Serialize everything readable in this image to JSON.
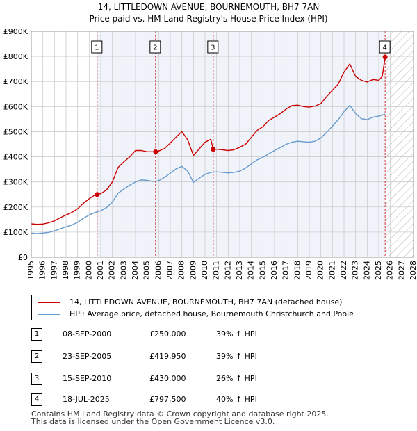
{
  "title_line1": "14, LITTLEDOWN AVENUE, BOURNEMOUTH, BH7 7AN",
  "title_line2": "Price paid vs. HM Land Registry's House Price Index (HPI)",
  "colors": {
    "property": "#cc0000",
    "hpi": "#6699cc",
    "marker_line": "#cc0000",
    "shade": "#dde6f5",
    "grid": "#cccccc"
  },
  "legend": {
    "property": "14, LITTLEDOWN AVENUE, BOURNEMOUTH, BH7 7AN (detached house)",
    "hpi": "HPI: Average price, detached house, Bournemouth Christchurch and Poole"
  },
  "sales": [
    {
      "num": "1",
      "date": "08-SEP-2000",
      "price": "£250,000",
      "hpi": "39% ↑ HPI"
    },
    {
      "num": "2",
      "date": "23-SEP-2005",
      "price": "£419,950",
      "hpi": "39% ↑ HPI"
    },
    {
      "num": "3",
      "date": "15-SEP-2010",
      "price": "£430,000",
      "hpi": "26% ↑ HPI"
    },
    {
      "num": "4",
      "date": "18-JUL-2025",
      "price": "£797,500",
      "hpi": "40% ↑ HPI"
    }
  ],
  "footer": [
    "Contains HM Land Registry data © Crown copyright and database right 2025.",
    "This data is licensed under the Open Government Licence v3.0."
  ],
  "chart_data": {
    "type": "line",
    "title": "14, LITTLEDOWN AVENUE, BOURNEMOUTH, BH7 7AN — Price paid vs. HM Land Registry's House Price Index (HPI)",
    "xlabel": "",
    "ylabel": "",
    "xlim": [
      1995,
      2028
    ],
    "ylim": [
      0,
      900000
    ],
    "grid": true,
    "x_ticks": [
      1995,
      1996,
      1997,
      1998,
      1999,
      2000,
      2001,
      2002,
      2003,
      2004,
      2005,
      2006,
      2007,
      2008,
      2009,
      2010,
      2011,
      2012,
      2013,
      2014,
      2015,
      2016,
      2017,
      2018,
      2019,
      2020,
      2021,
      2022,
      2023,
      2024,
      2025,
      2026,
      2027,
      2028
    ],
    "y_ticks": [
      0,
      100000,
      200000,
      300000,
      400000,
      500000,
      600000,
      700000,
      800000,
      900000
    ],
    "y_tick_labels": [
      "£0",
      "£100K",
      "£200K",
      "£300K",
      "£400K",
      "£500K",
      "£600K",
      "£700K",
      "£800K",
      "£900K"
    ],
    "hatched_from": 2025.55,
    "series": [
      {
        "name": "14, LITTLEDOWN AVENUE, BOURNEMOUTH, BH7 7AN (detached house)",
        "color": "#cc0000",
        "x": [
          1995,
          1995.5,
          1996,
          1996.5,
          1997,
          1997.5,
          1998,
          1998.5,
          1999,
          1999.5,
          2000,
          2000.5,
          2000.69,
          2001,
          2001.5,
          2002,
          2002.5,
          2003,
          2003.5,
          2004,
          2004.5,
          2005,
          2005.5,
          2005.73,
          2006,
          2006.5,
          2007,
          2007.5,
          2008,
          2008.5,
          2009,
          2009.5,
          2010,
          2010.5,
          2010.71,
          2011,
          2011.5,
          2012,
          2012.5,
          2013,
          2013.5,
          2014,
          2014.5,
          2015,
          2015.5,
          2016,
          2016.5,
          2017,
          2017.5,
          2018,
          2018.5,
          2019,
          2019.5,
          2020,
          2020.5,
          2021,
          2021.5,
          2022,
          2022.5,
          2023,
          2023.5,
          2024,
          2024.5,
          2025,
          2025.3,
          2025.55
        ],
        "y": [
          133000,
          131000,
          132000,
          137000,
          145000,
          157000,
          168000,
          178000,
          193000,
          215000,
          233000,
          248000,
          250000,
          253000,
          268000,
          300000,
          358000,
          380000,
          400000,
          425000,
          425000,
          420000,
          420000,
          419950,
          423000,
          433000,
          455000,
          478000,
          500000,
          468000,
          405000,
          432000,
          458000,
          470000,
          430000,
          430000,
          428000,
          425000,
          428000,
          438000,
          450000,
          478000,
          505000,
          520000,
          545000,
          558000,
          572000,
          590000,
          604000,
          606000,
          600000,
          598000,
          602000,
          612000,
          640000,
          665000,
          690000,
          738000,
          770000,
          720000,
          705000,
          698000,
          708000,
          705000,
          720000,
          797500
        ]
      },
      {
        "name": "HPI: Average price, detached house, Bournemouth Christchurch and Poole",
        "color": "#6699cc",
        "x": [
          1995,
          1995.5,
          1996,
          1996.5,
          1997,
          1997.5,
          1998,
          1998.5,
          1999,
          1999.5,
          2000,
          2000.5,
          2001,
          2001.5,
          2002,
          2002.5,
          2003,
          2003.5,
          2004,
          2004.5,
          2005,
          2005.5,
          2006,
          2006.5,
          2007,
          2007.5,
          2008,
          2008.5,
          2009,
          2009.5,
          2010,
          2010.5,
          2011,
          2011.5,
          2012,
          2012.5,
          2013,
          2013.5,
          2014,
          2014.5,
          2015,
          2015.5,
          2016,
          2016.5,
          2017,
          2017.5,
          2018,
          2018.5,
          2019,
          2019.5,
          2020,
          2020.5,
          2021,
          2021.5,
          2022,
          2022.5,
          2023,
          2023.5,
          2024,
          2024.5,
          2025,
          2025.55
        ],
        "y": [
          96000,
          94000,
          96000,
          99000,
          105000,
          113000,
          121000,
          128000,
          139000,
          155000,
          168000,
          178000,
          185000,
          198000,
          220000,
          255000,
          272000,
          287000,
          300000,
          308000,
          306000,
          302000,
          305000,
          318000,
          335000,
          352000,
          362000,
          343000,
          298000,
          315000,
          330000,
          338000,
          340000,
          338000,
          336000,
          338000,
          343000,
          355000,
          372000,
          388000,
          398000,
          412000,
          425000,
          437000,
          450000,
          458000,
          462000,
          460000,
          458000,
          462000,
          475000,
          498000,
          522000,
          548000,
          580000,
          605000,
          572000,
          552000,
          548000,
          558000,
          562000,
          570000
        ]
      }
    ],
    "markers": [
      {
        "label": "1",
        "x": 2000.69,
        "y": 250000
      },
      {
        "label": "2",
        "x": 2005.73,
        "y": 419950
      },
      {
        "label": "3",
        "x": 2010.71,
        "y": 430000
      },
      {
        "label": "4",
        "x": 2025.55,
        "y": 797500
      }
    ]
  }
}
